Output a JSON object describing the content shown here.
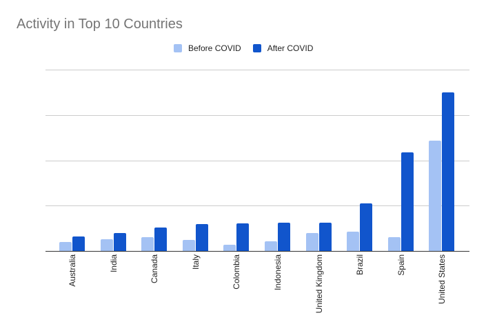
{
  "title": "Activity in Top 10 Countries",
  "legend": [
    {
      "label": "Before COVID",
      "color": "#a4c2f4"
    },
    {
      "label": "After COVID",
      "color": "#1155cc"
    }
  ],
  "chart_data": {
    "type": "bar",
    "title": "Activity in Top 10 Countries",
    "xlabel": "",
    "ylabel": "",
    "y_tick_labels_visible": false,
    "y_units": "gridline intervals (no tick labels shown)",
    "ylim": [
      0,
      4
    ],
    "grid": true,
    "legend_position": "top",
    "categories": [
      "Australia",
      "India",
      "Canada",
      "Italy",
      "Colombia",
      "Indonesia",
      "United Kingdom",
      "Brazil",
      "Spain",
      "United States"
    ],
    "series": [
      {
        "name": "Before COVID",
        "color": "#a4c2f4",
        "values": [
          0.2,
          0.26,
          0.3,
          0.24,
          0.14,
          0.21,
          0.4,
          0.43,
          0.3,
          2.44
        ]
      },
      {
        "name": "After COVID",
        "color": "#1155cc",
        "values": [
          0.32,
          0.4,
          0.52,
          0.59,
          0.61,
          0.62,
          0.62,
          1.05,
          2.18,
          3.5
        ]
      }
    ]
  }
}
